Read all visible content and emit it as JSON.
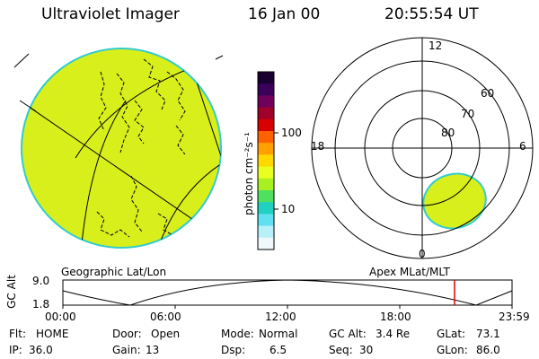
{
  "header": {
    "instrument": "Ultraviolet Imager",
    "date": "16 Jan 00",
    "time": "20:55:54 UT"
  },
  "colors": {
    "disk_fill": "#d8ef1c",
    "disk_edge": "#33cccc",
    "coast": "#000000",
    "marker": "#dd0000"
  },
  "geo_panel": {
    "label": "Geographic Lat/Lon"
  },
  "colorbar": {
    "unit": "photon cm⁻²s⁻¹",
    "ticks": [
      "100",
      "10"
    ],
    "colors": [
      "#1a0030",
      "#3a005a",
      "#70005a",
      "#a0002a",
      "#d80000",
      "#ff6000",
      "#ffa000",
      "#ffd800",
      "#e8ff20",
      "#a8f020",
      "#50e060",
      "#20d0c0",
      "#60e0f0",
      "#b8f0f8",
      "#f0f8fc"
    ]
  },
  "polar_panel": {
    "label": "Apex MLat/MLT",
    "mlt_labels": {
      "top": "12",
      "left": "18",
      "right": "6",
      "bottom": "0"
    },
    "lat_labels": [
      "60",
      "70",
      "80"
    ]
  },
  "gc_alt_plot": {
    "ylabel": "GC Alt",
    "y_ticks": [
      "9.0",
      "1.8"
    ],
    "x_ticks": [
      "00:00",
      "06:00",
      "12:00",
      "18:00",
      "23:59"
    ],
    "marker_time": "20:55"
  },
  "status": {
    "row1": [
      {
        "label": "Flt:",
        "value": "HOME"
      },
      {
        "label": "Door:",
        "value": "Open"
      },
      {
        "label": "Mode:",
        "value": "Normal"
      },
      {
        "label": "GC Alt:",
        "value": "3.4 Re"
      },
      {
        "label": "GLat:",
        "value": "73.1"
      }
    ],
    "row2": [
      {
        "label": "IP:",
        "value": "36.0"
      },
      {
        "label": "Gain:",
        "value": "13"
      },
      {
        "label": "Dsp:",
        "value": "6.5"
      },
      {
        "label": "Seq:",
        "value": "30"
      },
      {
        "label": "GLon:",
        "value": "86.0"
      }
    ]
  }
}
